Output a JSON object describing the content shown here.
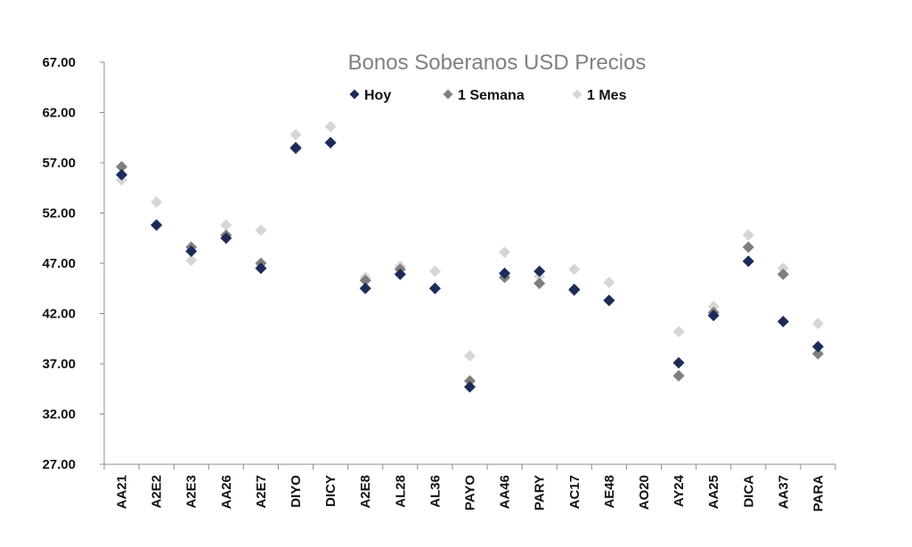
{
  "chart_data": {
    "type": "scatter",
    "title": "Bonos Soberanos USD Precios",
    "xlabel": "",
    "ylabel": "",
    "ylim": [
      27,
      67
    ],
    "yticks": [
      "27.00",
      "32.00",
      "37.00",
      "42.00",
      "47.00",
      "52.00",
      "57.00",
      "62.00",
      "67.00"
    ],
    "categories": [
      "AA21",
      "A2E2",
      "A2E3",
      "AA26",
      "A2E7",
      "DIYO",
      "DICY",
      "A2E8",
      "AL28",
      "AL36",
      "PAYO",
      "AA46",
      "PARY",
      "AC17",
      "AE48",
      "AO20",
      "AY24",
      "AA25",
      "DICA",
      "AA37",
      "PARA"
    ],
    "grid": false,
    "legend_position": "top",
    "marker": "diamond",
    "series": [
      {
        "name": "Hoy",
        "color": "#1c2c5a",
        "values": [
          55.8,
          50.8,
          48.2,
          49.5,
          46.5,
          58.5,
          59.0,
          44.5,
          45.9,
          44.5,
          34.7,
          46.0,
          46.2,
          44.4,
          43.3,
          null,
          37.1,
          41.8,
          47.2,
          41.2,
          38.7
        ]
      },
      {
        "name": "1 Semana",
        "color": "#7f7f7f",
        "values": [
          56.6,
          50.8,
          48.6,
          49.8,
          47.0,
          58.4,
          59.0,
          45.3,
          46.4,
          44.5,
          35.3,
          45.6,
          45.0,
          44.3,
          43.3,
          null,
          35.8,
          42.1,
          48.6,
          45.9,
          38.0
        ]
      },
      {
        "name": "1 Mes",
        "color": "#d6d6d6",
        "values": [
          55.3,
          53.1,
          47.3,
          50.8,
          50.3,
          59.8,
          60.6,
          45.6,
          46.7,
          46.2,
          37.8,
          48.1,
          45.7,
          46.4,
          45.1,
          null,
          40.2,
          42.7,
          49.8,
          46.5,
          41.0
        ]
      }
    ]
  }
}
